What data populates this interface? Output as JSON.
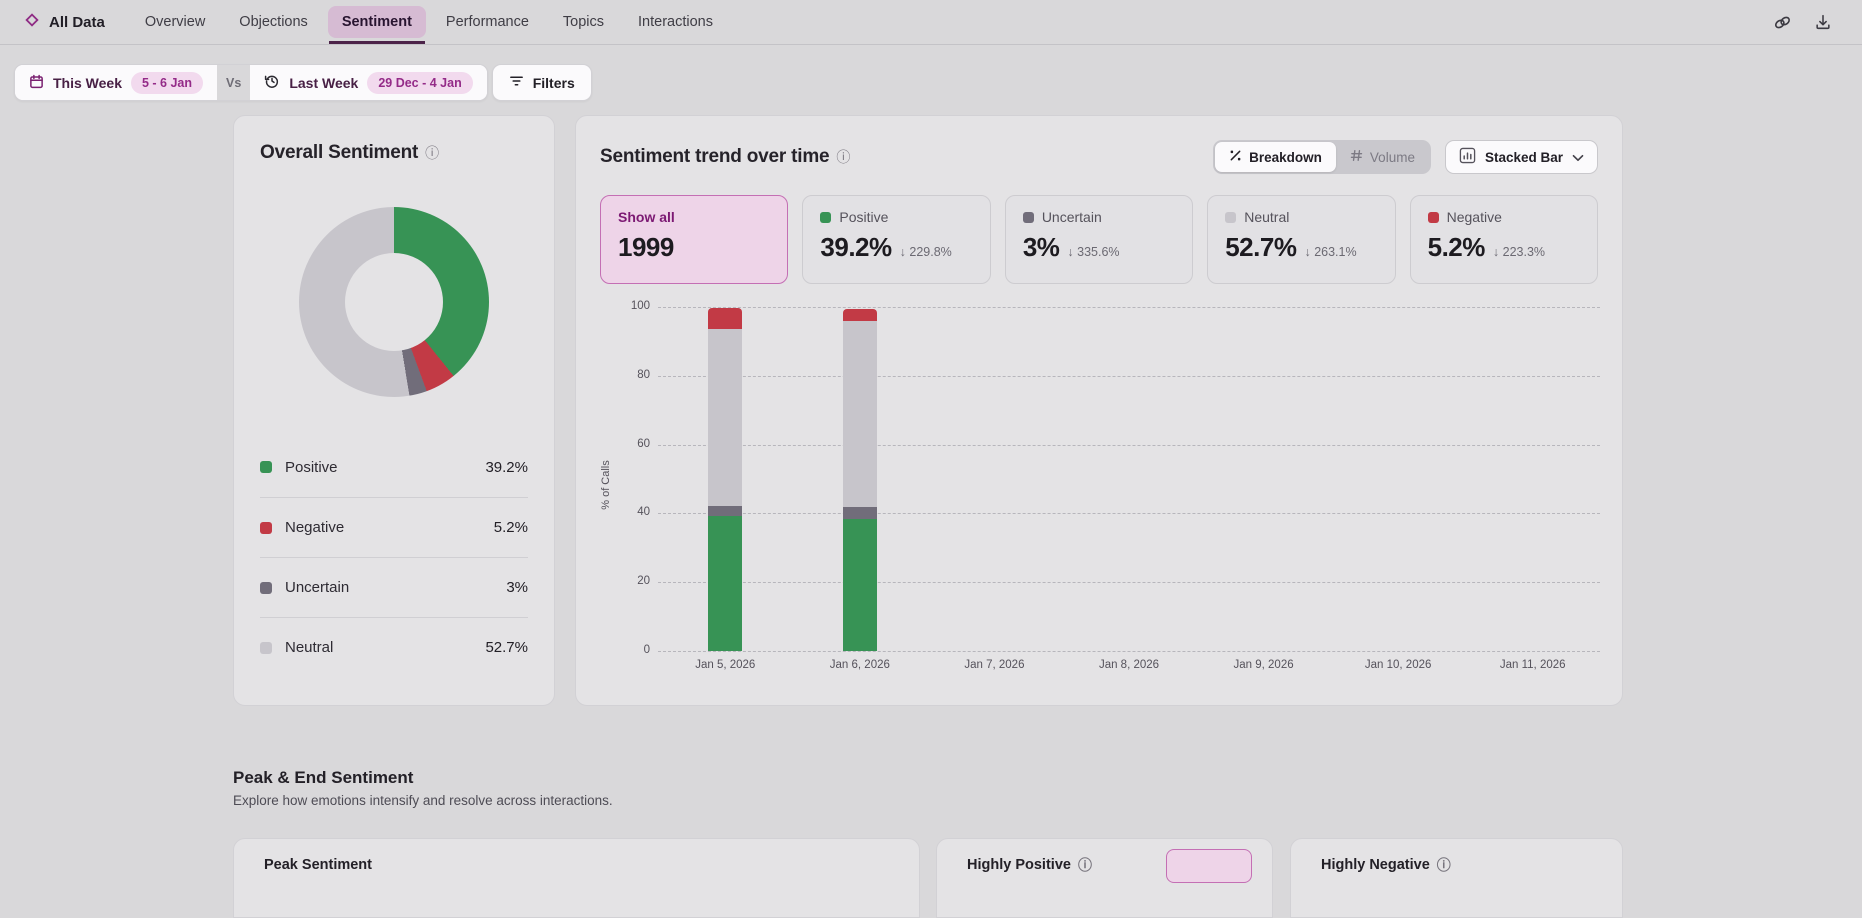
{
  "nav": {
    "brand": "All Data",
    "tabs": [
      {
        "label": "Overview",
        "active": false
      },
      {
        "label": "Objections",
        "active": false
      },
      {
        "label": "Sentiment",
        "active": true
      },
      {
        "label": "Performance",
        "active": false
      },
      {
        "label": "Topics",
        "active": false
      },
      {
        "label": "Interactions",
        "active": false
      }
    ]
  },
  "filter_bar": {
    "primary_period": {
      "label": "This Week",
      "range": "5 - 6 Jan"
    },
    "vs": "Vs",
    "comparison_period": {
      "label": "Last Week",
      "range": "29 Dec - 4 Jan"
    },
    "filters_label": "Filters"
  },
  "overall_sentiment": {
    "title": "Overall Sentiment",
    "legend": [
      {
        "label": "Positive",
        "value": "39.2%",
        "color": "#379355"
      },
      {
        "label": "Negative",
        "value": "5.2%",
        "color": "#c23a45"
      },
      {
        "label": "Uncertain",
        "value": "3%",
        "color": "#716d7a"
      },
      {
        "label": "Neutral",
        "value": "52.7%",
        "color": "#c7c5cb"
      }
    ]
  },
  "trend": {
    "title": "Sentiment trend over time",
    "view_toggle": [
      {
        "label": "Breakdown",
        "active": true
      },
      {
        "label": "Volume",
        "active": false
      }
    ],
    "chart_type": "Stacked Bar",
    "stat_cards": [
      {
        "label": "Show all",
        "value": "1999",
        "selected": true
      },
      {
        "label": "Positive",
        "value": "39.2%",
        "delta": "229.8%",
        "delta_arrow": "↓",
        "color": "#379355"
      },
      {
        "label": "Uncertain",
        "value": "3%",
        "delta": "335.6%",
        "delta_arrow": "↓",
        "color": "#716d7a"
      },
      {
        "label": "Neutral",
        "value": "52.7%",
        "delta": "263.1%",
        "delta_arrow": "↓",
        "color": "#c7c5cb"
      },
      {
        "label": "Negative",
        "value": "5.2%",
        "delta": "223.3%",
        "delta_arrow": "↓",
        "color": "#c23a45"
      }
    ]
  },
  "peak_end": {
    "title": "Peak & End Sentiment",
    "subtitle": "Explore how emotions intensify and resolve across interactions.",
    "cards": [
      {
        "title": "Peak Sentiment"
      },
      {
        "title": "Highly Positive"
      },
      {
        "title": "Highly Negative"
      }
    ]
  },
  "icons": {
    "info": "ⓘ"
  },
  "colors": {
    "accent_purple": "#8f2b84",
    "active_tab_bg": "#d6bbd3",
    "tab_underline": "#4c2349",
    "pill_bg": "#f2daee",
    "page_bg": "#d9d8da",
    "card_bg": "#e4e3e5",
    "show_all_bg": "#eed4e8",
    "show_all_border": "#c46fb4"
  },
  "chart_data": [
    {
      "type": "pie",
      "donut": true,
      "title": "Overall Sentiment",
      "labels": [
        "Positive",
        "Negative",
        "Uncertain",
        "Neutral"
      ],
      "values": [
        39.2,
        5.2,
        3,
        52.7
      ],
      "colors": [
        "#379355",
        "#c23a45",
        "#716d7a",
        "#c7c5cb"
      ],
      "start_angle_deg": 0,
      "direction": "clockwise"
    },
    {
      "type": "bar",
      "stacked": true,
      "title": "Sentiment trend over time",
      "ylabel": "% of Calls",
      "ylim": [
        0,
        100
      ],
      "yticks": [
        0,
        20,
        40,
        60,
        80,
        100
      ],
      "grid": "horizontal-dashed",
      "legend_position": "none",
      "categories": [
        "Jan 5, 2026",
        "Jan 6, 2026",
        "Jan 7, 2026",
        "Jan 8, 2026",
        "Jan 9, 2026",
        "Jan 10, 2026",
        "Jan 11, 2026"
      ],
      "series": [
        {
          "name": "Positive",
          "color": "#379355",
          "values": [
            39.2,
            38.5,
            0,
            0,
            0,
            0,
            0
          ]
        },
        {
          "name": "Uncertain",
          "color": "#716d7a",
          "values": [
            2.9,
            3.5,
            0,
            0,
            0,
            0,
            0
          ]
        },
        {
          "name": "Neutral",
          "color": "#c7c5cb",
          "values": [
            51.6,
            54.0,
            0,
            0,
            0,
            0,
            0
          ]
        },
        {
          "name": "Negative",
          "color": "#c23a45",
          "values": [
            6.1,
            3.5,
            0,
            0,
            0,
            0,
            0
          ]
        }
      ]
    }
  ]
}
